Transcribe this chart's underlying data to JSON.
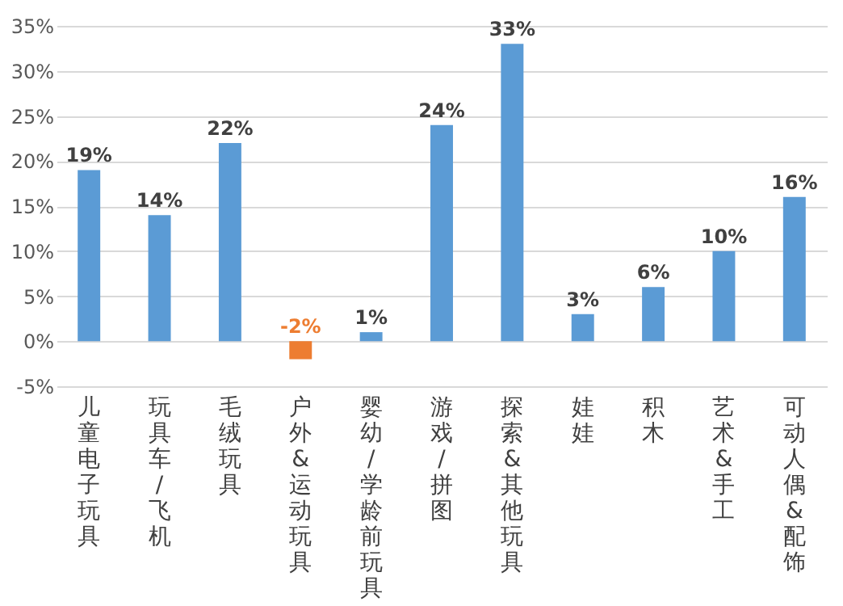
{
  "chart_data": {
    "type": "bar",
    "categories": [
      "儿童电子玩具",
      "玩具车/飞机",
      "毛绒玩具",
      "户外&运动玩具",
      "婴幼/学龄前玩具",
      "游戏/拼图",
      "探索&其他玩具",
      "娃娃",
      "积木",
      "艺术&手工",
      "可动人偶&配饰"
    ],
    "values": [
      19,
      14,
      22,
      -2,
      1,
      24,
      33,
      3,
      6,
      10,
      16
    ],
    "colors": [
      "#5b9bd5",
      "#5b9bd5",
      "#5b9bd5",
      "#ed7d31",
      "#5b9bd5",
      "#5b9bd5",
      "#5b9bd5",
      "#5b9bd5",
      "#5b9bd5",
      "#5b9bd5",
      "#5b9bd5"
    ],
    "value_labels": [
      "19%",
      "14%",
      "22%",
      "-2%",
      "1%",
      "24%",
      "33%",
      "3%",
      "6%",
      "10%",
      "16%"
    ],
    "ylim": [
      -5,
      35
    ],
    "yticks": [
      {
        "value": -5,
        "label": "-5%"
      },
      {
        "value": 0,
        "label": "0%"
      },
      {
        "value": 5,
        "label": "5%"
      },
      {
        "value": 10,
        "label": "10%"
      },
      {
        "value": 15,
        "label": "15%"
      },
      {
        "value": 20,
        "label": "20%"
      },
      {
        "value": 25,
        "label": "25%"
      },
      {
        "value": 30,
        "label": "30%"
      },
      {
        "value": 35,
        "label": "35%"
      }
    ],
    "grid": "y"
  }
}
